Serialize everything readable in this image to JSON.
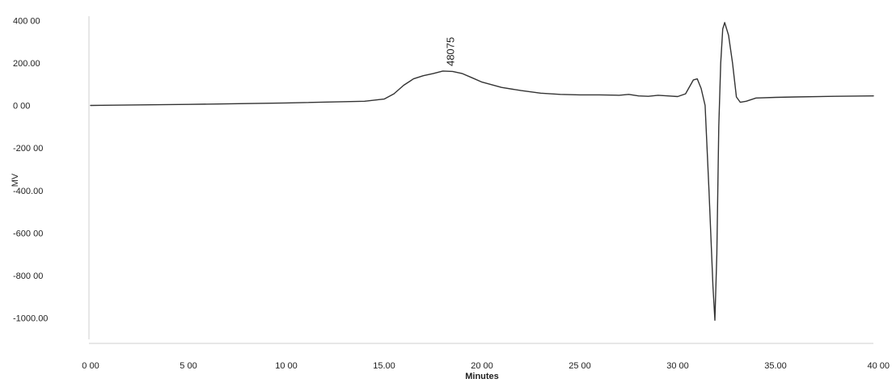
{
  "chart_data": {
    "type": "line",
    "title": "",
    "xlabel": "Minutes",
    "ylabel": "MV",
    "xlim": [
      0,
      40
    ],
    "ylim": [
      -1100,
      420
    ],
    "x_ticks": [
      0,
      5,
      10,
      15,
      20,
      25,
      30,
      35,
      40
    ],
    "x_tick_labels": [
      "0 00",
      "5 00",
      "10 00",
      "15.00",
      "20 00",
      "25 00",
      "30 00",
      "35.00",
      "40 00"
    ],
    "y_ticks": [
      400,
      200,
      0,
      -200,
      -400,
      -600,
      -800,
      -1000
    ],
    "y_tick_labels": [
      "400 00",
      "200.00",
      "0 00",
      "-200 00",
      "-400.00",
      "-600 00",
      "-800 00",
      "-1000.00"
    ],
    "grid": false,
    "series": [
      {
        "x": [
          0,
          5,
          10,
          14,
          15,
          15.5,
          16,
          16.5,
          17,
          17.5,
          18,
          18.5,
          19,
          19.5,
          20,
          21,
          22,
          23,
          24,
          25,
          26,
          27,
          27.5,
          28,
          28.5,
          29,
          29.5,
          30,
          30.4,
          30.8,
          31.0,
          31.2,
          31.4,
          31.6,
          31.8,
          31.9,
          32.0,
          32.1,
          32.2,
          32.3,
          32.4,
          32.6,
          32.8,
          33.0,
          33.2,
          33.5,
          34,
          35,
          36,
          38,
          40
        ],
        "y": [
          0,
          5,
          12,
          20,
          30,
          55,
          95,
          125,
          140,
          150,
          162,
          160,
          150,
          130,
          110,
          85,
          70,
          58,
          52,
          50,
          50,
          48,
          52,
          45,
          43,
          48,
          45,
          42,
          55,
          120,
          125,
          80,
          0,
          -400,
          -850,
          -1010,
          -700,
          -100,
          200,
          360,
          390,
          330,
          200,
          40,
          15,
          20,
          35,
          38,
          40,
          43,
          45
        ]
      }
    ],
    "annotations": [
      {
        "text": "48075",
        "x": 18.4,
        "y": 162
      }
    ]
  }
}
